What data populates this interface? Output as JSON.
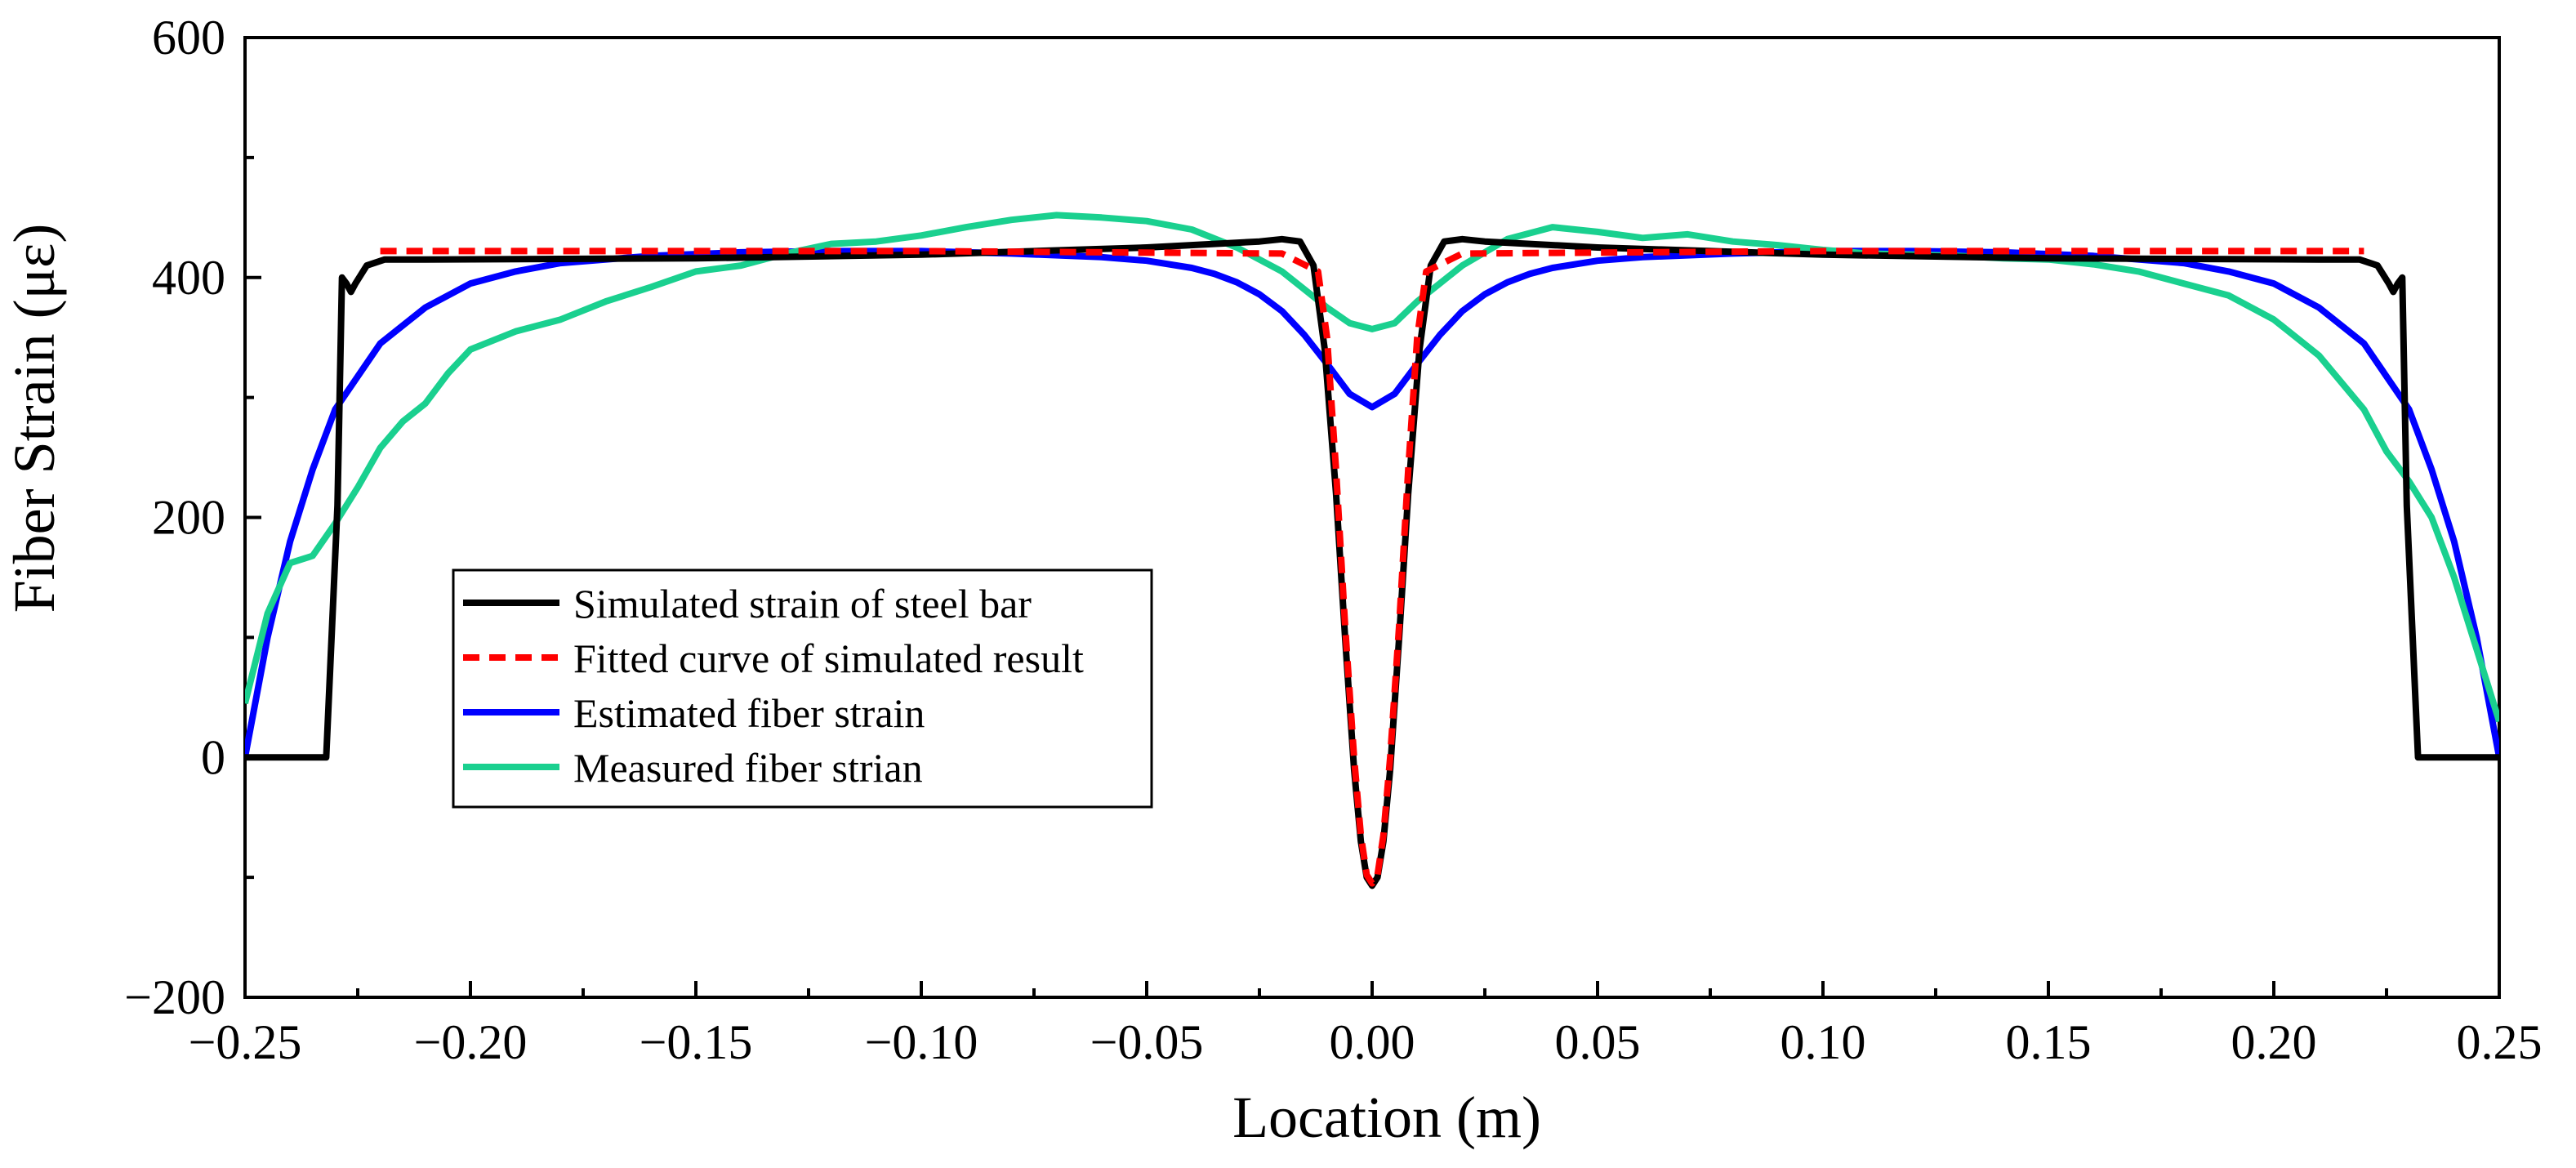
{
  "chart_data": {
    "type": "line",
    "title": "",
    "xlabel": "Location (m)",
    "ylabel": "Fiber Strain (με)",
    "xlim": [
      -0.25,
      0.25
    ],
    "ylim": [
      -200,
      600
    ],
    "xticks": [
      -0.25,
      -0.2,
      -0.15,
      -0.1,
      -0.05,
      0.0,
      0.05,
      0.1,
      0.15,
      0.2,
      0.25
    ],
    "xtick_labels": [
      "−0.25",
      "−0.20",
      "−0.15",
      "−0.10",
      "−0.05",
      "0.00",
      "0.05",
      "0.10",
      "0.15",
      "0.20",
      "0.25"
    ],
    "yticks": [
      -200,
      0,
      200,
      400,
      600
    ],
    "ytick_labels": [
      "−200",
      "0",
      "200",
      "400",
      "600"
    ],
    "grid": false,
    "legend_position": "lower-left",
    "series": [
      {
        "name": "Simulated strain of steel bar",
        "color": "#000000",
        "dash": "solid",
        "x": [
          -0.25,
          -0.232,
          -0.2295,
          -0.2285,
          -0.2275,
          -0.2265,
          -0.2255,
          -0.223,
          -0.219,
          -0.21,
          -0.15,
          -0.1,
          -0.05,
          -0.025,
          -0.02,
          -0.016,
          -0.013,
          -0.0105,
          -0.008,
          -0.006,
          -0.004,
          -0.0025,
          -0.0012,
          0.0,
          0.0012,
          0.0025,
          0.004,
          0.006,
          0.008,
          0.0105,
          0.013,
          0.016,
          0.02,
          0.025,
          0.05,
          0.1,
          0.15,
          0.21,
          0.219,
          0.223,
          0.2255,
          0.2265,
          0.2275,
          0.2285,
          0.2295,
          0.232,
          0.25
        ],
        "y": [
          0,
          0,
          210,
          400,
          395,
          388,
          395,
          410,
          415,
          415,
          416,
          419,
          425,
          430,
          432,
          430,
          410,
          340,
          220,
          100,
          -10,
          -70,
          -100,
          -107,
          -100,
          -70,
          -10,
          100,
          220,
          340,
          410,
          430,
          432,
          430,
          425,
          419,
          416,
          415,
          415,
          410,
          395,
          388,
          395,
          400,
          210,
          0,
          0
        ]
      },
      {
        "name": "Fitted curve of simulated result",
        "color": "#ff0000",
        "dash": "dashed",
        "x": [
          -0.22,
          -0.1,
          -0.02,
          -0.012,
          -0.01,
          -0.008,
          -0.006,
          -0.004,
          -0.0025,
          -0.0012,
          0.0,
          0.0012,
          0.0025,
          0.004,
          0.006,
          0.008,
          0.01,
          0.012,
          0.02,
          0.1,
          0.22
        ],
        "y": [
          422,
          422,
          420,
          405,
          350,
          240,
          110,
          0,
          -65,
          -98,
          -105,
          -98,
          -65,
          0,
          110,
          240,
          350,
          405,
          420,
          422,
          422
        ]
      },
      {
        "name": "Estimated fiber strain",
        "color": "#0000ff",
        "dash": "solid",
        "x": [
          -0.25,
          -0.245,
          -0.24,
          -0.235,
          -0.23,
          -0.22,
          -0.21,
          -0.2,
          -0.19,
          -0.18,
          -0.16,
          -0.14,
          -0.12,
          -0.1,
          -0.08,
          -0.06,
          -0.05,
          -0.04,
          -0.035,
          -0.03,
          -0.025,
          -0.02,
          -0.015,
          -0.01,
          -0.005,
          0.0,
          0.005,
          0.01,
          0.015,
          0.02,
          0.025,
          0.03,
          0.035,
          0.04,
          0.05,
          0.06,
          0.08,
          0.1,
          0.12,
          0.14,
          0.16,
          0.18,
          0.19,
          0.2,
          0.21,
          0.22,
          0.23,
          0.235,
          0.24,
          0.245,
          0.25
        ],
        "y": [
          0,
          100,
          180,
          240,
          290,
          345,
          375,
          395,
          405,
          412,
          418,
          421,
          422,
          422,
          420,
          417,
          414,
          408,
          403,
          396,
          386,
          372,
          352,
          328,
          303,
          292,
          303,
          328,
          352,
          372,
          386,
          396,
          403,
          408,
          414,
          417,
          420,
          422,
          422,
          421,
          418,
          412,
          405,
          395,
          375,
          345,
          290,
          240,
          180,
          100,
          0
        ]
      },
      {
        "name": "Measured fiber strian",
        "color": "#1ad08f",
        "dash": "solid",
        "x": [
          -0.25,
          -0.245,
          -0.24,
          -0.235,
          -0.23,
          -0.225,
          -0.22,
          -0.215,
          -0.21,
          -0.205,
          -0.2,
          -0.19,
          -0.18,
          -0.17,
          -0.16,
          -0.15,
          -0.14,
          -0.13,
          -0.12,
          -0.11,
          -0.1,
          -0.09,
          -0.08,
          -0.07,
          -0.06,
          -0.05,
          -0.04,
          -0.03,
          -0.02,
          -0.015,
          -0.01,
          -0.005,
          0.0,
          0.005,
          0.01,
          0.015,
          0.02,
          0.03,
          0.04,
          0.05,
          0.06,
          0.07,
          0.08,
          0.09,
          0.1,
          0.11,
          0.12,
          0.13,
          0.14,
          0.15,
          0.16,
          0.17,
          0.18,
          0.19,
          0.2,
          0.21,
          0.22,
          0.225,
          0.23,
          0.235,
          0.24,
          0.245,
          0.25
        ],
        "y": [
          45,
          120,
          162,
          168,
          195,
          225,
          258,
          280,
          295,
          320,
          340,
          355,
          365,
          380,
          392,
          405,
          410,
          420,
          428,
          430,
          435,
          442,
          448,
          452,
          450,
          447,
          440,
          425,
          405,
          390,
          375,
          362,
          357,
          362,
          380,
          395,
          410,
          432,
          442,
          438,
          433,
          436,
          430,
          427,
          423,
          420,
          419,
          418,
          416,
          415,
          411,
          405,
          395,
          385,
          365,
          335,
          290,
          255,
          230,
          200,
          150,
          90,
          30
        ]
      }
    ]
  }
}
